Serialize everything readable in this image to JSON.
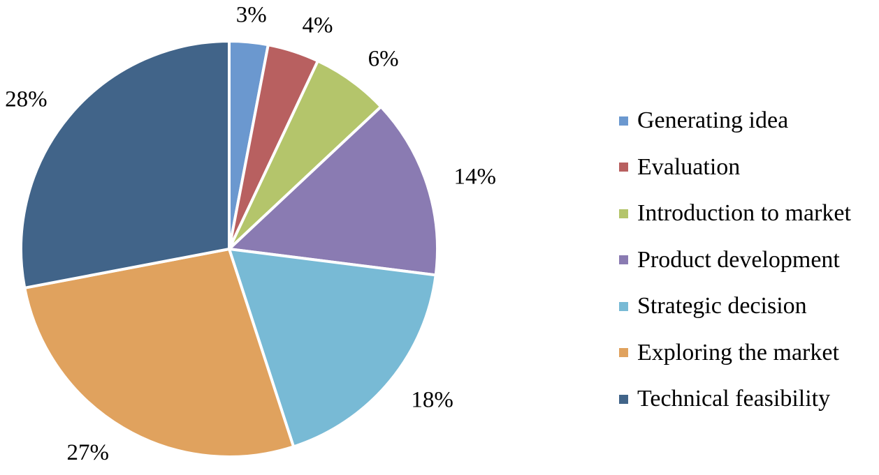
{
  "chart_data": {
    "type": "pie",
    "title": "",
    "start": "top",
    "direction": "clockwise",
    "legend_position": "right",
    "slices": [
      {
        "label": "Generating idea",
        "value": 3,
        "display": "3%",
        "color": "#6b98cf"
      },
      {
        "label": "Evaluation",
        "value": 4,
        "display": "4%",
        "color": "#b86060"
      },
      {
        "label": "Introduction to market",
        "value": 6,
        "display": "6%",
        "color": "#b4c56b"
      },
      {
        "label": "Product development",
        "value": 14,
        "display": "14%",
        "color": "#8a7bb2"
      },
      {
        "label": "Strategic decision",
        "value": 18,
        "display": "18%",
        "color": "#78bad5"
      },
      {
        "label": "Exploring the market",
        "value": 27,
        "display": "27%",
        "color": "#e0a25e"
      },
      {
        "label": "Technical feasibility",
        "value": 28,
        "display": "28%",
        "color": "#416489"
      }
    ]
  }
}
